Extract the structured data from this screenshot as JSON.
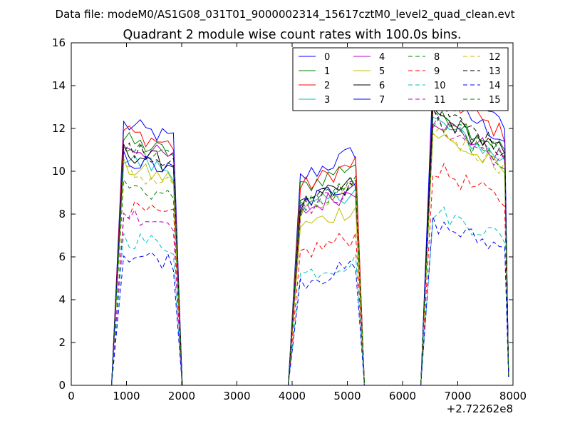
{
  "suptitle": "Data file: modeM0/AS1G08_031T01_9000002314_15617cztM0_level2_quad_clean.evt",
  "chart_data": {
    "type": "line",
    "title": "Quadrant 2 module wise count rates with 100.0s bins.",
    "xlabel": "",
    "ylabel": "",
    "x_offset_label": "+2.72262e8",
    "xlim": [
      0,
      8000
    ],
    "ylim": [
      0,
      16
    ],
    "x_ticks": [
      "0",
      "1000",
      "2000",
      "3000",
      "4000",
      "5000",
      "6000",
      "7000",
      "8000"
    ],
    "y_ticks": [
      "0",
      "2",
      "4",
      "6",
      "8",
      "10",
      "12",
      "14",
      "16"
    ],
    "grid": false,
    "legend_position": "top-right",
    "legend_columns": 4,
    "series": [
      {
        "name": "0",
        "color": "#0000ff",
        "dash": "solid"
      },
      {
        "name": "1",
        "color": "#008000",
        "dash": "solid"
      },
      {
        "name": "2",
        "color": "#ff0000",
        "dash": "solid"
      },
      {
        "name": "3",
        "color": "#00bfbf",
        "dash": "solid"
      },
      {
        "name": "4",
        "color": "#bf00bf",
        "dash": "solid"
      },
      {
        "name": "5",
        "color": "#bfbf00",
        "dash": "solid"
      },
      {
        "name": "6",
        "color": "#000000",
        "dash": "solid"
      },
      {
        "name": "7",
        "color": "#0000ff",
        "dash": "solid"
      },
      {
        "name": "8",
        "color": "#008000",
        "dash": "dashed"
      },
      {
        "name": "9",
        "color": "#ff0000",
        "dash": "dashed"
      },
      {
        "name": "10",
        "color": "#00bfbf",
        "dash": "dashed"
      },
      {
        "name": "11",
        "color": "#bf00bf",
        "dash": "dashed"
      },
      {
        "name": "12",
        "color": "#bfbf00",
        "dash": "dashed"
      },
      {
        "name": "13",
        "color": "#000000",
        "dash": "dashed"
      },
      {
        "name": "14",
        "color": "#0000ff",
        "dash": "dashed"
      },
      {
        "name": "15",
        "color": "#008000",
        "dash": "dashed"
      }
    ],
    "segments": [
      {
        "x_start": 950,
        "x_end": 1850,
        "levels": [
          11.5,
          10.8,
          11.2,
          10.0,
          10.6,
          9.6,
          10.3,
          10.0,
          8.8,
          7.8,
          6.5,
          7.6,
          9.4,
          10.4,
          5.8,
          10.6
        ]
      },
      {
        "x_start": 4150,
        "x_end": 5150,
        "levels": [
          10.5,
          10.0,
          10.0,
          8.8,
          8.8,
          8.0,
          9.1,
          9.2,
          9.0,
          6.7,
          5.6,
          8.9,
          8.7,
          9.1,
          5.3,
          9.1
        ]
      },
      {
        "x_start": 6550,
        "x_end": 7850,
        "levels": [
          11.5,
          11.0,
          11.7,
          10.5,
          10.6,
          10.0,
          10.8,
          12.3,
          10.8,
          8.6,
          6.9,
          10.4,
          10.2,
          11.0,
          6.4,
          10.4
        ]
      }
    ]
  }
}
